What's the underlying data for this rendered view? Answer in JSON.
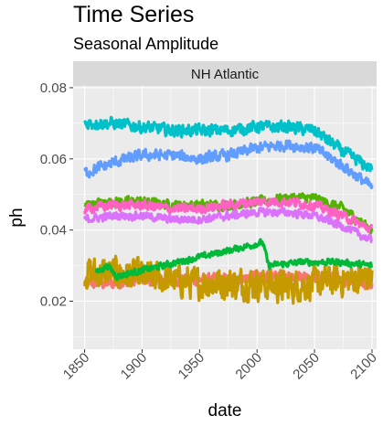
{
  "chart_data": {
    "type": "line",
    "title": "Time Series",
    "subtitle": "Seasonal Amplitude",
    "facet": "NH Atlantic",
    "xlabel": "date",
    "ylabel": "ph",
    "xlim": [
      1840,
      2104
    ],
    "ylim": [
      0.0065,
      0.0805
    ],
    "xticks": [
      1850,
      1900,
      1950,
      2000,
      2050,
      2100
    ],
    "yticks": [
      0.02,
      0.04,
      0.06,
      0.08
    ],
    "ytick_labels": [
      "0.02",
      "0.04",
      "0.06",
      "0.08"
    ],
    "grid": true,
    "legend": "none",
    "series": [
      {
        "color": "#F8766D",
        "x": [
          1850,
          1875,
          1900,
          1925,
          1950,
          1975,
          2000,
          2025,
          2050,
          2075,
          2100
        ],
        "values": [
          0.025,
          0.025,
          0.026,
          0.026,
          0.026,
          0.026,
          0.027,
          0.027,
          0.027,
          0.026,
          0.025
        ],
        "noise": 0.0015
      },
      {
        "color": "#C49A00",
        "x": [
          1850,
          1875,
          1900,
          1925,
          1950,
          1975,
          2000,
          2025,
          2050,
          2075,
          2100
        ],
        "values": [
          0.028,
          0.028,
          0.027,
          0.026,
          0.025,
          0.025,
          0.025,
          0.024,
          0.025,
          0.026,
          0.027
        ],
        "noise": 0.004
      },
      {
        "color": "#53B400",
        "x": [
          1850,
          1875,
          1900,
          1925,
          1950,
          1975,
          2000,
          2025,
          2050,
          2075,
          2100
        ],
        "values": [
          0.047,
          0.048,
          0.048,
          0.047,
          0.047,
          0.047,
          0.048,
          0.049,
          0.049,
          0.046,
          0.04
        ],
        "noise": 0.0012
      },
      {
        "color": "#00B938",
        "x": [
          1860,
          1870,
          1878,
          2005,
          2010,
          2040,
          2070,
          2100
        ],
        "values": [
          0.028,
          0.03,
          0.027,
          0.0365,
          0.03,
          0.031,
          0.031,
          0.03
        ],
        "noise": 0.0008
      },
      {
        "color": "#00C1C9",
        "x": [
          1850,
          1875,
          1900,
          1925,
          1950,
          1975,
          2000,
          2025,
          2050,
          2075,
          2100
        ],
        "values": [
          0.07,
          0.07,
          0.069,
          0.068,
          0.068,
          0.068,
          0.069,
          0.069,
          0.068,
          0.062,
          0.057
        ],
        "noise": 0.0015
      },
      {
        "color": "#619CFF",
        "x": [
          1850,
          1875,
          1900,
          1925,
          1950,
          1975,
          2000,
          2025,
          2050,
          2075,
          2100
        ],
        "values": [
          0.056,
          0.059,
          0.061,
          0.061,
          0.06,
          0.061,
          0.063,
          0.064,
          0.063,
          0.058,
          0.052
        ],
        "noise": 0.0014
      },
      {
        "color": "#DB72FB",
        "x": [
          1850,
          1875,
          1900,
          1925,
          1950,
          1975,
          2000,
          2025,
          2050,
          2075,
          2100
        ],
        "values": [
          0.043,
          0.044,
          0.044,
          0.043,
          0.043,
          0.044,
          0.045,
          0.045,
          0.044,
          0.041,
          0.037
        ],
        "noise": 0.001
      },
      {
        "color": "#FF61C3",
        "x": [
          1850,
          1875,
          1900,
          1925,
          1950,
          1975,
          2000,
          2025,
          2050,
          2075,
          2100
        ],
        "values": [
          0.046,
          0.047,
          0.047,
          0.046,
          0.046,
          0.047,
          0.048,
          0.048,
          0.047,
          0.044,
          0.04
        ],
        "noise": 0.0012
      }
    ]
  }
}
